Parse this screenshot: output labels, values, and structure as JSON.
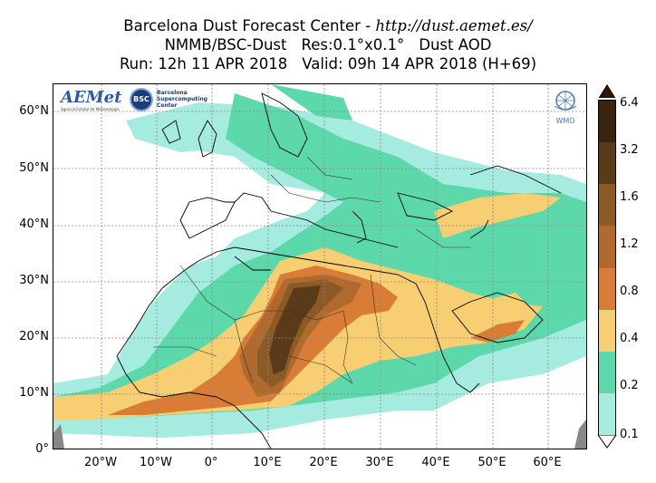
{
  "title": {
    "line1_prefix": "Barcelona Dust Forecast Center - ",
    "line1_url": "http://dust.aemet.es/",
    "line2_model": "NMMB/BSC-Dust",
    "line2_res": "Res:0.1°x0.1°",
    "line2_var": "Dust AOD",
    "line3_run": "Run: 12h 11 APR 2018",
    "line3_valid": "Valid: 09h 14 APR 2018 (H+69)"
  },
  "axes": {
    "lat_labels": [
      "60°N",
      "50°N",
      "40°N",
      "30°N",
      "20°N",
      "10°N",
      "0°"
    ],
    "lon_labels": [
      "20°W",
      "10°W",
      "0°",
      "10°E",
      "20°E",
      "30°E",
      "40°E",
      "50°E",
      "60°E"
    ]
  },
  "colorbar": {
    "labels": [
      "6.4",
      "3.2",
      "1.6",
      "1.2",
      "0.8",
      "0.4",
      "0.2",
      "0.1"
    ],
    "colors": [
      "#3a2410",
      "#5a3a18",
      "#8b5a26",
      "#b06a2e",
      "#d97d36",
      "#f7cf72",
      "#5dd8aa",
      "#a6ebe0"
    ]
  },
  "logos": {
    "aemet": "AEMet",
    "aemet_sub": "Agencia Estatal de Meteorología",
    "bsc": "BSC",
    "bsc_name": "Barcelona Supercomputing Center",
    "wmo": "WMO"
  }
}
